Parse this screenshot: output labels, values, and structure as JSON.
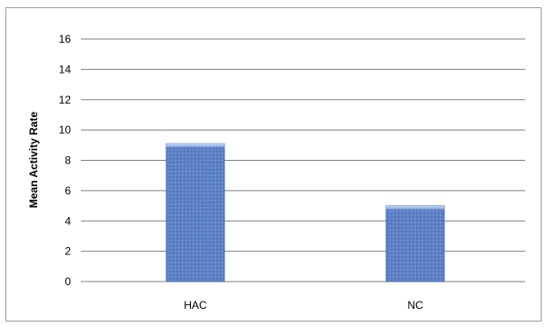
{
  "chart_data": {
    "type": "bar",
    "title": "",
    "xlabel": "",
    "ylabel": "Mean Activity Rate",
    "categories": [
      "HAC",
      "NC"
    ],
    "values": [
      9.1,
      5.0
    ],
    "ylim": [
      0,
      16
    ],
    "yticks": [
      0,
      2,
      4,
      6,
      8,
      10,
      12,
      14,
      16
    ],
    "grid": true,
    "legend": "none",
    "colors": {
      "bar": "#5b7fc4",
      "bar_dark": "#3f63a8",
      "bar_light": "#8fb0e6",
      "gridline": "#808080"
    }
  }
}
